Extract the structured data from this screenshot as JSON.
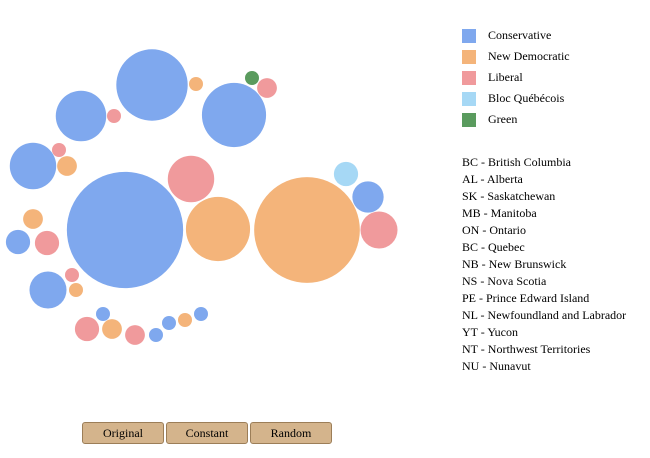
{
  "chart_data": {
    "type": "packed-bubble",
    "series": [
      {
        "name": "Conservative",
        "color": "#7fa8ee",
        "values": [
          26,
          21,
          13,
          11,
          69,
          5,
          3,
          7,
          1,
          1,
          1,
          1
        ]
      },
      {
        "name": "New Democratic",
        "color": "#f4b47a",
        "values": [
          1,
          2,
          21,
          57,
          2,
          1,
          2,
          1
        ]
      },
      {
        "name": "Liberal",
        "color": "#f09a9c",
        "values": [
          2,
          1,
          1,
          11,
          7,
          3,
          1,
          3,
          2
        ]
      },
      {
        "name": "Bloc Québécois",
        "color": "#a6d8f5",
        "values": [
          3
        ]
      },
      {
        "name": "Green",
        "color": "#5a9b5e",
        "values": [
          1
        ]
      }
    ]
  },
  "provinces": [
    "BC - British Columbia",
    "AL - Alberta",
    "SK - Saskatchewan",
    "MB - Manitoba",
    "ON - Ontario",
    "BC - Quebec",
    "NB - New Brunswick",
    "NS - Nova Scotia",
    "PE - Prince Edward Island",
    "NL - Newfoundland and Labrador",
    "YT - Yucon",
    "NT - Northwest Territories",
    "NU - Nunavut"
  ],
  "buttons": [
    "Original",
    "Constant",
    "Random"
  ]
}
